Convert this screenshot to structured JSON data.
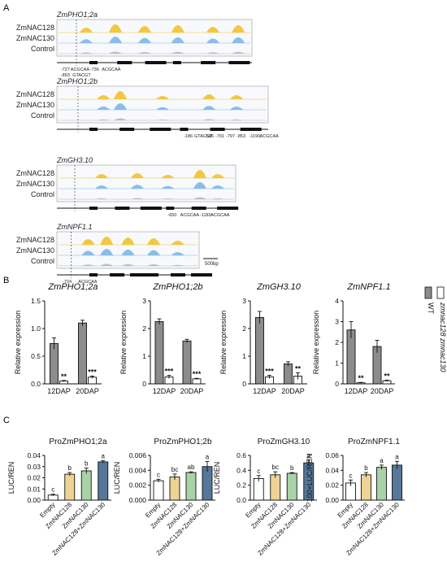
{
  "panels": {
    "a": "A",
    "b": "B",
    "c": "C"
  },
  "colors": {
    "yellow": "#f2c12e",
    "blue": "#7fb6e6",
    "gray": "#b8b8b8",
    "darkbar": "#8c8c8c",
    "tan": "#eed394",
    "green": "#a9d3a6",
    "steel": "#56779a"
  },
  "tracks": {
    "scale_bar": "500bp",
    "genes": [
      {
        "name": "ZmPHO1;2a",
        "rows": [
          "ZmNAC128",
          "ZmNAC130",
          "Control"
        ],
        "motifs": [
          "-727",
          "ACGCAA",
          "-736",
          "ACGCAA",
          "-893",
          "GTACGT"
        ]
      },
      {
        "name": "ZmPHO1;2b",
        "rows": [
          "ZmNAC128",
          "ZmNAC130",
          "Control"
        ],
        "motifs": [
          "-186",
          "GTACGT",
          "-595",
          "-791",
          "-797",
          "-853",
          "-1190",
          "ACGCAA"
        ]
      },
      {
        "name": "ZmGH3.10",
        "rows": [
          "ZmNAC128",
          "ZmNAC130",
          "Control"
        ],
        "motifs": [
          "-650",
          "ACGCAA",
          "-1180",
          "ACGCAA"
        ]
      },
      {
        "name": "ZmNPF1.1",
        "rows": [
          "ZmNAC128",
          "ZmNAC130",
          "Control"
        ],
        "motifs": [
          "-724",
          "ACGCAA"
        ]
      }
    ]
  },
  "chart_data": [
    {
      "type": "bar",
      "title": "ZmPHO1;2a",
      "ylabel": "Relative expression",
      "ylim": [
        0,
        1.5
      ],
      "yticks": [
        "0.0",
        "0.5",
        "1.0",
        "1.5"
      ],
      "categories": [
        "12DAP",
        "20DAP"
      ],
      "series": [
        {
          "name": "WT",
          "values": [
            0.73,
            1.1
          ],
          "errors": [
            0.1,
            0.05
          ]
        },
        {
          "name": "zmnac128 zmnac130",
          "values": [
            0.05,
            0.12
          ],
          "errors": [
            0.01,
            0.02
          ]
        }
      ],
      "significance": [
        "**",
        "***"
      ]
    },
    {
      "type": "bar",
      "title": "ZmPHO1;2b",
      "ylabel": "Relative expression",
      "ylim": [
        0,
        3
      ],
      "yticks": [
        "0",
        "1",
        "2",
        "3"
      ],
      "categories": [
        "12DAP",
        "20DAP"
      ],
      "series": [
        {
          "name": "WT",
          "values": [
            2.25,
            1.55
          ],
          "errors": [
            0.1,
            0.06
          ]
        },
        {
          "name": "zmnac128 zmnac130",
          "values": [
            0.25,
            0.18
          ],
          "errors": [
            0.06,
            0.02
          ]
        }
      ],
      "significance": [
        "***",
        "***"
      ]
    },
    {
      "type": "bar",
      "title": "ZmGH3.10",
      "ylabel": "Relative expression",
      "ylim": [
        0,
        3
      ],
      "yticks": [
        "0",
        "1",
        "2",
        "3"
      ],
      "categories": [
        "12DAP",
        "20DAP"
      ],
      "series": [
        {
          "name": "WT",
          "values": [
            2.4,
            0.72
          ],
          "errors": [
            0.22,
            0.08
          ]
        },
        {
          "name": "zmnac128 zmnac130",
          "values": [
            0.25,
            0.28
          ],
          "errors": [
            0.06,
            0.12
          ]
        }
      ],
      "significance": [
        "***",
        "**"
      ]
    },
    {
      "type": "bar",
      "title": "ZmNPF1.1",
      "ylabel": "Relative expression",
      "ylim": [
        0,
        4
      ],
      "yticks": [
        "0",
        "1",
        "2",
        "3",
        "4"
      ],
      "categories": [
        "12DAP",
        "20DAP"
      ],
      "series": [
        {
          "name": "WT",
          "values": [
            2.6,
            1.8
          ],
          "errors": [
            0.4,
            0.3
          ]
        },
        {
          "name": "zmnac128 zmnac130",
          "values": [
            0.05,
            0.15
          ],
          "errors": [
            0.02,
            0.03
          ]
        }
      ],
      "significance": [
        "**",
        "**"
      ]
    },
    {
      "type": "bar",
      "title": "ProZmPHO1;2a",
      "ylabel": "LUC/REN",
      "ylim": [
        0,
        0.04
      ],
      "yticks": [
        "0.00",
        "0.01",
        "0.02",
        "0.03",
        "0.04"
      ],
      "categories": [
        "Empty",
        "ZmNAC128",
        "ZmNAC130",
        "ZmNAC128+ZmNAC130"
      ],
      "values": [
        0.0045,
        0.0232,
        0.0262,
        0.0342
      ],
      "errors": [
        0.0008,
        0.0015,
        0.0025,
        0.001
      ],
      "letters": [
        "c",
        "b",
        "b",
        "a"
      ]
    },
    {
      "type": "bar",
      "title": "ProZmPHO1;2b",
      "ylabel": "LUC/REN",
      "ylim": [
        0,
        0.006
      ],
      "yticks": [
        "0.000",
        "0.002",
        "0.004",
        "0.006"
      ],
      "categories": [
        "Empty",
        "ZmNAC128",
        "ZmNAC130",
        "ZmNAC128+ZmNAC130"
      ],
      "values": [
        0.0026,
        0.0031,
        0.0037,
        0.0045
      ],
      "errors": [
        0.0002,
        0.0004,
        0.0001,
        0.0007
      ],
      "letters": [
        "c",
        "bc",
        "ab",
        "a"
      ]
    },
    {
      "type": "bar",
      "title": "ProZmGH3.10",
      "ylabel": "LUC/REN",
      "ylim": [
        0,
        0.6
      ],
      "yticks": [
        "0.0",
        "0.2",
        "0.4",
        "0.6"
      ],
      "categories": [
        "Empty",
        "ZmNAC128",
        "ZmNAC130",
        "ZmNAC128+ZmNAC130"
      ],
      "values": [
        0.29,
        0.34,
        0.36,
        0.5
      ],
      "errors": [
        0.04,
        0.04,
        0.01,
        0.04
      ],
      "letters": [
        "c",
        "bc",
        "b",
        "a"
      ]
    },
    {
      "type": "bar",
      "title": "ProZmNPF1.1",
      "ylabel": "100×LUC/REN",
      "ylim": [
        0,
        0.06
      ],
      "yticks": [
        "0.00",
        "0.02",
        "0.04",
        "0.06"
      ],
      "categories": [
        "Empty",
        "ZmNAC128",
        "ZmNAC130",
        "ZmNAC128+ZmNAC130"
      ],
      "values": [
        0.023,
        0.034,
        0.044,
        0.047
      ],
      "errors": [
        0.004,
        0.003,
        0.003,
        0.005
      ],
      "letters": [
        "c",
        "b",
        "a",
        "a"
      ]
    }
  ]
}
